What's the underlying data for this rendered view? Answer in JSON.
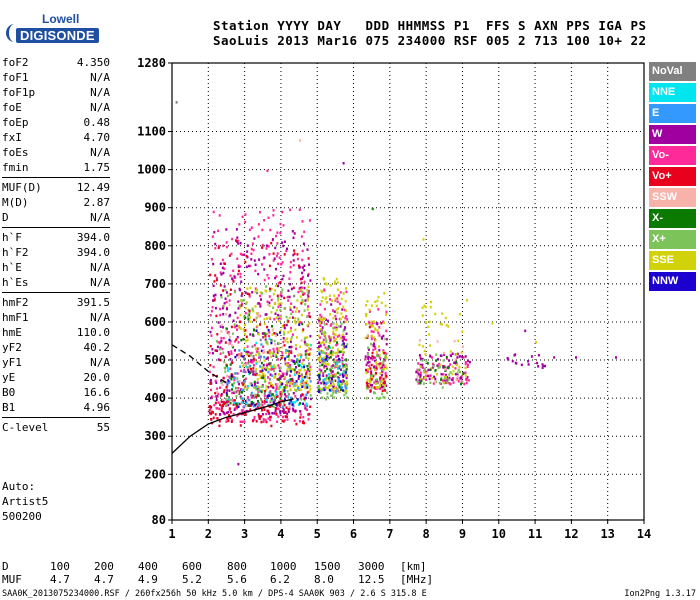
{
  "logo": {
    "line1": "Lowell",
    "line2": "DIGISONDE"
  },
  "header": {
    "row1": {
      "station": "Station",
      "yyyy": "YYYY",
      "day": "DAY",
      "ddd": "DDD",
      "time": "HHMMSS",
      "p1": "P1",
      "ffs": "FFS",
      "s": "S",
      "axn": "AXN",
      "pps": "PPS",
      "iga": "IGA",
      "ps": "PS"
    },
    "row2": {
      "station": "SaoLuis",
      "yyyy": "2013",
      "day": "Mar16",
      "ddd": "075",
      "time": "234000",
      "p1": "RSF",
      "ffs": "005",
      "s": "2",
      "axn": "713",
      "pps": "100",
      "iga": "10+",
      "ps": "22"
    }
  },
  "params": {
    "group1": [
      {
        "label": "foF2",
        "value": "4.350"
      },
      {
        "label": "foF1",
        "value": "N/A"
      },
      {
        "label": "foF1p",
        "value": "N/A"
      },
      {
        "label": "foE",
        "value": "N/A"
      },
      {
        "label": "foEp",
        "value": "0.48"
      },
      {
        "label": "fxI",
        "value": "4.70"
      },
      {
        "label": "foEs",
        "value": "N/A"
      },
      {
        "label": "fmin",
        "value": "1.75"
      }
    ],
    "group2": [
      {
        "label": "MUF(D)",
        "value": "12.49"
      },
      {
        "label": "M(D)",
        "value": "2.87"
      },
      {
        "label": "D",
        "value": "N/A"
      }
    ],
    "group3": [
      {
        "label": "h`F",
        "value": "394.0"
      },
      {
        "label": "h`F2",
        "value": "394.0"
      },
      {
        "label": "h`E",
        "value": "N/A"
      },
      {
        "label": "h`Es",
        "value": "N/A"
      }
    ],
    "group4": [
      {
        "label": "hmF2",
        "value": "391.5"
      },
      {
        "label": "hmF1",
        "value": "N/A"
      },
      {
        "label": "hmE",
        "value": "110.0"
      },
      {
        "label": "yF2",
        "value": "40.2"
      },
      {
        "label": "yF1",
        "value": "N/A"
      },
      {
        "label": "yE",
        "value": "20.0"
      },
      {
        "label": "B0",
        "value": "16.6"
      },
      {
        "label": "B1",
        "value": "4.96"
      }
    ],
    "group5": [
      {
        "label": "C-level",
        "value": "55"
      }
    ]
  },
  "auto": {
    "line1": "Auto:",
    "line2": "Artist5",
    "line3": "500200"
  },
  "legend": [
    {
      "label": "NoVal",
      "color": "#808080"
    },
    {
      "label": "NNE",
      "color": "#00e5ee"
    },
    {
      "label": "E",
      "color": "#3399ff"
    },
    {
      "label": "W",
      "color": "#a000a0"
    },
    {
      "label": "Vo-",
      "color": "#ff2a9a"
    },
    {
      "label": "Vo+",
      "color": "#e8001c"
    },
    {
      "label": "SSW",
      "color": "#f7b2aa"
    },
    {
      "label": "X-",
      "color": "#0a7a00"
    },
    {
      "label": "X+",
      "color": "#7cc35a"
    },
    {
      "label": "SSE",
      "color": "#d2d20a"
    },
    {
      "label": "NNW",
      "color": "#1c00d0"
    }
  ],
  "bottom": {
    "row1": {
      "label": "D",
      "values": [
        "100",
        "200",
        "400",
        "600",
        "800",
        "1000",
        "1500",
        "3000"
      ],
      "unit": "[km]"
    },
    "row2": {
      "label": "MUF",
      "values": [
        "4.7",
        "4.7",
        "4.9",
        "5.2",
        "5.6",
        "6.2",
        "8.0",
        "12.5"
      ],
      "unit": "[MHz]"
    }
  },
  "footer": {
    "text": "SAA0K_2013075234000.RSF / 260fx256h 50 kHz 5.0 km / DPS-4 SAA0K 903 / 2.6 S 315.8 E",
    "version": "Ion2Png 1.3.17"
  },
  "chart_data": {
    "type": "scatter",
    "x_ticks": [
      1,
      2,
      3,
      4,
      5,
      6,
      7,
      8,
      9,
      10,
      11,
      12,
      13,
      14
    ],
    "y_ticks": [
      80,
      200,
      300,
      400,
      500,
      600,
      700,
      800,
      900,
      1000,
      1100,
      1280
    ],
    "xlim": [
      1,
      14
    ],
    "ylim": [
      80,
      1280
    ],
    "grid": true,
    "legend_position": "right",
    "series": [
      {
        "name": "Vo-",
        "color": "#ff2a9a",
        "clusters": [
          {
            "x": [
              2.0,
              4.8
            ],
            "y": [
              340,
              900
            ],
            "n": 380
          },
          {
            "x": [
              5.0,
              5.8
            ],
            "y": [
              420,
              700
            ],
            "n": 110
          },
          {
            "x": [
              6.3,
              6.9
            ],
            "y": [
              420,
              650
            ],
            "n": 70
          },
          {
            "x": [
              7.7,
              9.2
            ],
            "y": [
              440,
              520
            ],
            "n": 60
          }
        ]
      },
      {
        "name": "W",
        "color": "#a000a0",
        "clusters": [
          {
            "x": [
              2.0,
              4.8
            ],
            "y": [
              360,
              850
            ],
            "n": 300
          },
          {
            "x": [
              5.0,
              5.8
            ],
            "y": [
              430,
              650
            ],
            "n": 70
          },
          {
            "x": [
              6.3,
              6.9
            ],
            "y": [
              430,
              600
            ],
            "n": 50
          },
          {
            "x": [
              7.7,
              9.2
            ],
            "y": [
              450,
              520
            ],
            "n": 60
          },
          {
            "x": [
              10.2,
              11.3
            ],
            "y": [
              480,
              520
            ],
            "n": 18
          }
        ]
      },
      {
        "name": "SSE",
        "color": "#d2d20a",
        "clusters": [
          {
            "x": [
              2.8,
              4.8
            ],
            "y": [
              420,
              700
            ],
            "n": 220
          },
          {
            "x": [
              5.0,
              5.8
            ],
            "y": [
              420,
              720
            ],
            "n": 130
          },
          {
            "x": [
              6.3,
              6.9
            ],
            "y": [
              430,
              680
            ],
            "n": 70
          },
          {
            "x": [
              7.7,
              9.1
            ],
            "y": [
              440,
              660
            ],
            "n": 50
          }
        ]
      },
      {
        "name": "X+",
        "color": "#7cc35a",
        "clusters": [
          {
            "x": [
              2.2,
              4.8
            ],
            "y": [
              380,
              700
            ],
            "n": 120
          },
          {
            "x": [
              5.0,
              5.8
            ],
            "y": [
              400,
              600
            ],
            "n": 60
          },
          {
            "x": [
              6.3,
              6.9
            ],
            "y": [
              400,
              560
            ],
            "n": 35
          },
          {
            "x": [
              7.7,
              9.0
            ],
            "y": [
              430,
              520
            ],
            "n": 25
          }
        ]
      },
      {
        "name": "Vo+",
        "color": "#e8001c",
        "clusters": [
          {
            "x": [
              2.0,
              4.8
            ],
            "y": [
              330,
              820
            ],
            "n": 150
          },
          {
            "x": [
              2.0,
              4.2
            ],
            "y": [
              340,
              420
            ],
            "n": 60
          },
          {
            "x": [
              6.3,
              6.9
            ],
            "y": [
              420,
              600
            ],
            "n": 25
          }
        ]
      },
      {
        "name": "NNE",
        "color": "#00e5ee",
        "clusters": [
          {
            "x": [
              2.5,
              4.8
            ],
            "y": [
              380,
              560
            ],
            "n": 45
          },
          {
            "x": [
              5.0,
              5.8
            ],
            "y": [
              420,
              540
            ],
            "n": 20
          }
        ]
      },
      {
        "name": "E",
        "color": "#3399ff",
        "clusters": [
          {
            "x": [
              2.5,
              4.8
            ],
            "y": [
              380,
              560
            ],
            "n": 40
          },
          {
            "x": [
              5.0,
              5.8
            ],
            "y": [
              420,
              520
            ],
            "n": 18
          }
        ]
      },
      {
        "name": "X-",
        "color": "#0a7a00",
        "clusters": [
          {
            "x": [
              2.4,
              4.8
            ],
            "y": [
              380,
              620
            ],
            "n": 55
          },
          {
            "x": [
              5.0,
              5.8
            ],
            "y": [
              420,
              560
            ],
            "n": 22
          },
          {
            "x": [
              7.7,
              9.0
            ],
            "y": [
              440,
              520
            ],
            "n": 15
          }
        ]
      },
      {
        "name": "NNW",
        "color": "#1c00d0",
        "clusters": [
          {
            "x": [
              2.4,
              4.8
            ],
            "y": [
              380,
              600
            ],
            "n": 45
          },
          {
            "x": [
              5.0,
              5.8
            ],
            "y": [
              420,
              560
            ],
            "n": 18
          }
        ]
      },
      {
        "name": "SSW",
        "color": "#f7b2aa",
        "clusters": [
          {
            "x": [
              2.2,
              4.8
            ],
            "y": [
              380,
              650
            ],
            "n": 40
          },
          {
            "x": [
              7.7,
              9.0
            ],
            "y": [
              440,
              560
            ],
            "n": 12
          }
        ]
      },
      {
        "name": "NoVal",
        "color": "#808080",
        "clusters": [
          {
            "x": [
              2.5,
              4.8
            ],
            "y": [
              400,
              700
            ],
            "n": 25
          }
        ]
      }
    ],
    "isolated_points": [
      {
        "x": 1.1,
        "y": 1180,
        "color": "#808080"
      },
      {
        "x": 2.8,
        "y": 230,
        "color": "#a000a0"
      },
      {
        "x": 3.6,
        "y": 1000,
        "color": "#ff2a9a"
      },
      {
        "x": 4.5,
        "y": 1080,
        "color": "#f7b2aa"
      },
      {
        "x": 5.7,
        "y": 1020,
        "color": "#a000a0"
      },
      {
        "x": 6.5,
        "y": 900,
        "color": "#0a7a00"
      },
      {
        "x": 7.9,
        "y": 820,
        "color": "#d2d20a"
      },
      {
        "x": 9.1,
        "y": 660,
        "color": "#d2d20a"
      },
      {
        "x": 9.8,
        "y": 600,
        "color": "#d2d20a"
      },
      {
        "x": 10.7,
        "y": 580,
        "color": "#a000a0"
      },
      {
        "x": 11.0,
        "y": 550,
        "color": "#d2d20a"
      },
      {
        "x": 11.5,
        "y": 510,
        "color": "#a000a0"
      },
      {
        "x": 12.1,
        "y": 510,
        "color": "#a000a0"
      },
      {
        "x": 13.2,
        "y": 510,
        "color": "#a000a0"
      }
    ],
    "traces": [
      {
        "name": "o-trace",
        "style": "solid",
        "x": [
          1.0,
          1.5,
          2.0,
          2.5,
          3.0,
          3.5,
          4.0,
          4.35
        ],
        "y": [
          255,
          300,
          332,
          350,
          362,
          375,
          390,
          398
        ]
      },
      {
        "name": "x-trace",
        "style": "dashed",
        "x": [
          1.0,
          1.5,
          2.0,
          2.5
        ],
        "y": [
          540,
          510,
          470,
          440
        ]
      }
    ]
  }
}
